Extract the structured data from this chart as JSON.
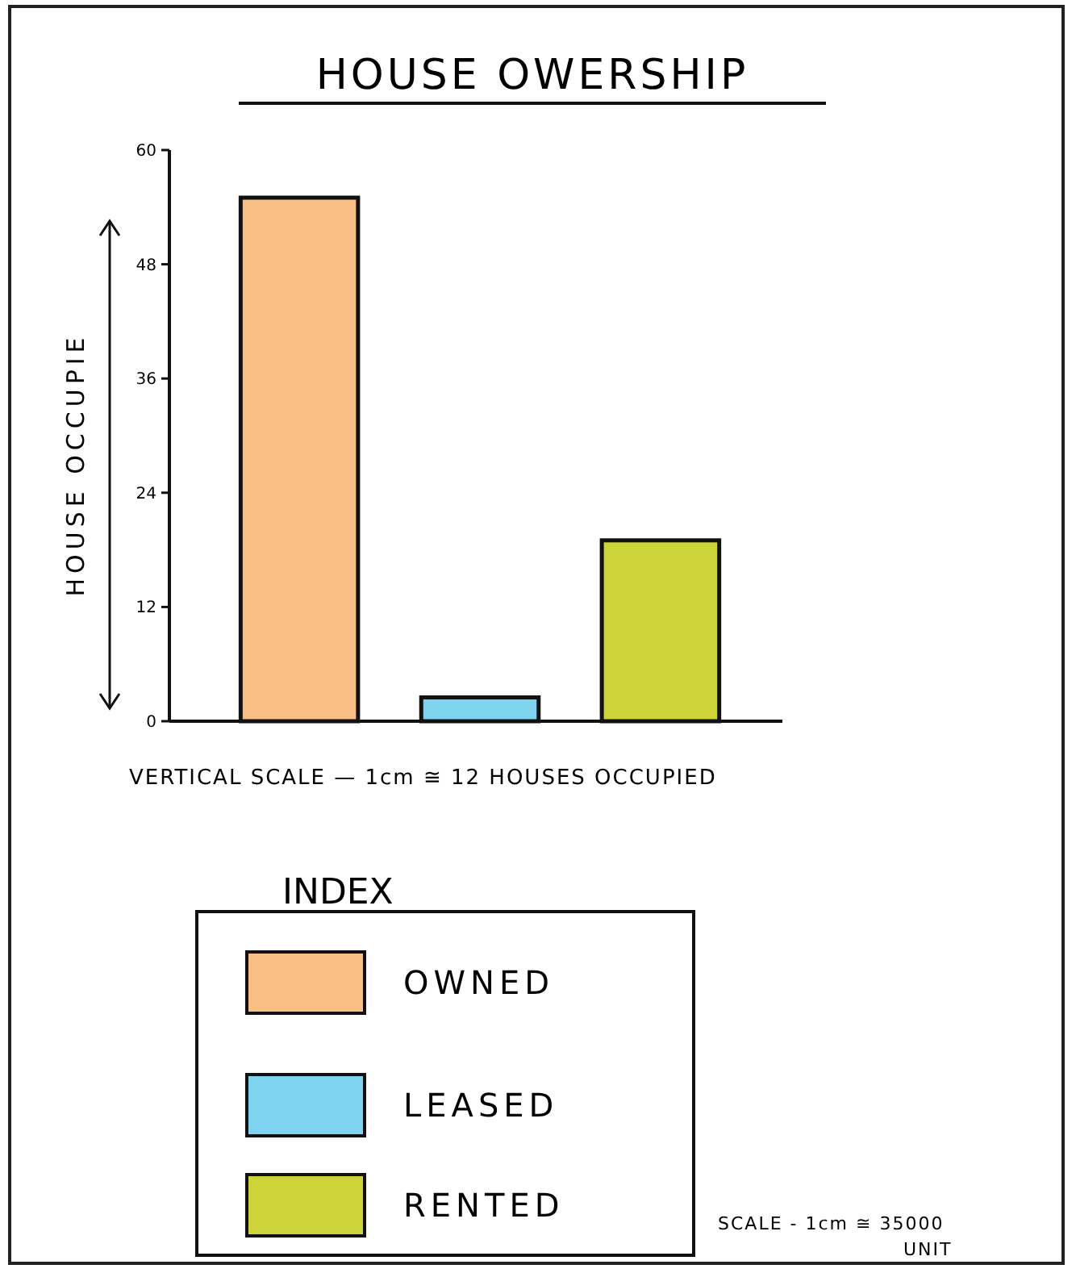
{
  "chart_data": {
    "type": "bar",
    "title": "HOUSE OWERSHIP",
    "ylabel": "HOUSE OCCUPIE",
    "legend_title": "INDEX",
    "annotations": [
      "VERTICAL SCALE — 1cm ≅ 12 HOUSES OCCUPIED",
      "SCALE - 1cm ≅ 35000 UNIT"
    ],
    "categories": [
      null,
      null,
      null
    ],
    "series": [
      {
        "name": "OWNED",
        "color": "#f8be84",
        "values": [
          55,
          null,
          null
        ]
      },
      {
        "name": "LEASED",
        "color": "#7dd3f0",
        "values": [
          null,
          2.5,
          null
        ]
      },
      {
        "name": "RENTED",
        "color": "#cdd43a",
        "values": [
          null,
          null,
          19
        ]
      }
    ],
    "ylim": [
      0,
      60
    ],
    "yticks": [
      0,
      12,
      24,
      36,
      48,
      60
    ],
    "legend": "bottom",
    "grid": false
  }
}
